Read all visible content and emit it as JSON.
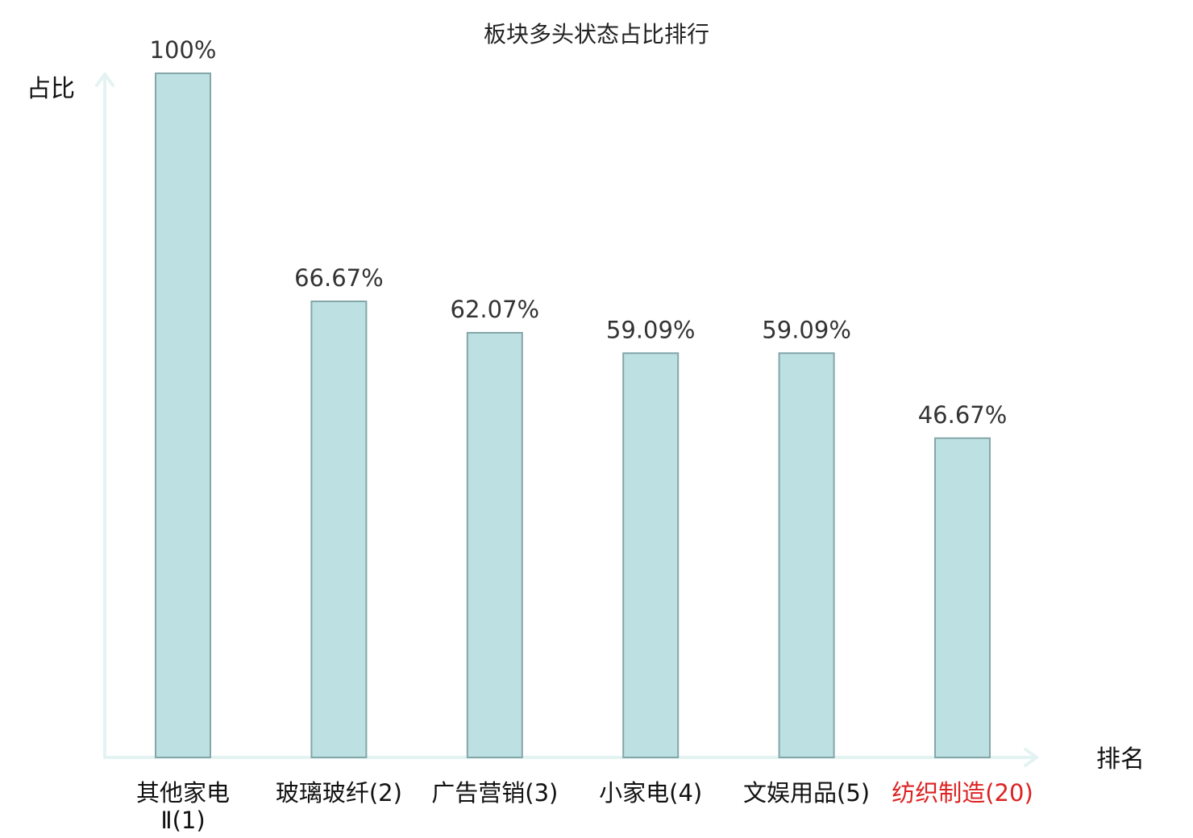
{
  "chart_data": {
    "type": "bar",
    "title": "板块多头状态占比排行",
    "ylabel": "占比",
    "xlabel": "排名",
    "ylim": [
      0,
      100
    ],
    "grid": false,
    "categories": [
      {
        "lines": [
          "其他家电",
          "Ⅱ(1)"
        ],
        "highlight": false
      },
      {
        "lines": [
          "玻璃玻纤(2)"
        ],
        "highlight": false
      },
      {
        "lines": [
          "广告营销(3)"
        ],
        "highlight": false
      },
      {
        "lines": [
          "小家电(4)"
        ],
        "highlight": false
      },
      {
        "lines": [
          "文娱用品(5)"
        ],
        "highlight": false
      },
      {
        "lines": [
          "纺织制造(20)"
        ],
        "highlight": true
      }
    ],
    "values": [
      100,
      66.67,
      62.07,
      59.09,
      59.09,
      46.67
    ],
    "value_labels": [
      "100%",
      "66.67%",
      "62.07%",
      "59.09%",
      "59.09%",
      "46.67%"
    ],
    "colors": {
      "bar_fill": "#bde0e3",
      "bar_stroke": "#84a6a8",
      "axis": "#e3f3f1",
      "category_text": "#111111",
      "highlight_text": "#dd2222"
    }
  }
}
